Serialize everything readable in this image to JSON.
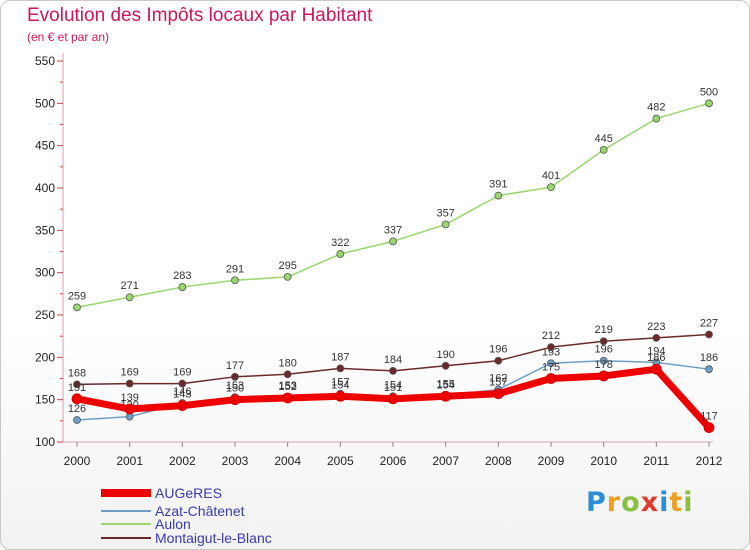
{
  "chart_data": {
    "type": "line",
    "title": "Evolution des Impôts locaux par Habitant",
    "subtitle": "(en € et par an)",
    "x": [
      "2000",
      "2001",
      "2002",
      "2003",
      "2004",
      "2005",
      "2006",
      "2007",
      "2008",
      "2009",
      "2010",
      "2011",
      "2012"
    ],
    "ylim": [
      100,
      550
    ],
    "yticks": [
      100,
      150,
      200,
      250,
      300,
      350,
      400,
      450,
      500,
      550
    ],
    "series": [
      {
        "name": "AUGeRES",
        "color": "#ee0000",
        "values": [
          151,
          139,
          143,
          150,
          152,
          154,
          151,
          154,
          157,
          175,
          178,
          186,
          117
        ]
      },
      {
        "name": "Azat-Châtenet",
        "color": "#6e9ec8",
        "values": [
          126,
          130,
          146,
          153,
          153,
          157,
          154,
          155,
          162,
          193,
          196,
          194,
          186
        ]
      },
      {
        "name": "Aulon",
        "color": "#9ad66e",
        "values": [
          259,
          271,
          283,
          291,
          295,
          322,
          337,
          357,
          391,
          401,
          445,
          482,
          500
        ]
      },
      {
        "name": "Montaigut-le-Blanc",
        "color": "#6b2a2a",
        "values": [
          168,
          169,
          169,
          177,
          180,
          187,
          184,
          190,
          196,
          212,
          219,
          223,
          227
        ]
      }
    ]
  },
  "logo": {
    "text": "Proxiti"
  }
}
